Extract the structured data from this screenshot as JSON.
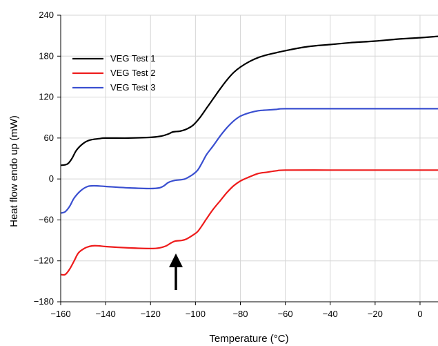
{
  "chart_data": {
    "type": "line",
    "xlabel": "Temperature (°C)",
    "ylabel": "Heat flow endo up (mW)",
    "xlim": [
      -160,
      8
    ],
    "ylim": [
      -180,
      240
    ],
    "xticks": [
      -160,
      -140,
      -120,
      -100,
      -80,
      -60,
      -40,
      -20,
      0
    ],
    "yticks": [
      -180,
      -120,
      -60,
      0,
      60,
      120,
      180,
      240
    ],
    "xtick_labels": [
      "−160",
      "−140",
      "−120",
      "−100",
      "−80",
      "−60",
      "−40",
      "−20",
      "0"
    ],
    "ytick_labels": [
      "−180",
      "−120",
      "−60",
      "0",
      "60",
      "120",
      "180",
      "240"
    ],
    "grid": true,
    "legend_position": "top-left",
    "annotation": "upward arrow at about −107 °C",
    "series": [
      {
        "name": "VEG Test 1",
        "color": "#000000",
        "points": [
          [
            -160,
            20
          ],
          [
            -157,
            22
          ],
          [
            -155,
            30
          ],
          [
            -153,
            42
          ],
          [
            -150,
            52
          ],
          [
            -147,
            57
          ],
          [
            -143,
            59
          ],
          [
            -140,
            60
          ],
          [
            -130,
            60
          ],
          [
            -120,
            61
          ],
          [
            -115,
            63
          ],
          [
            -112,
            66
          ],
          [
            -110,
            69
          ],
          [
            -107,
            70
          ],
          [
            -104,
            73
          ],
          [
            -101,
            79
          ],
          [
            -98,
            90
          ],
          [
            -95,
            104
          ],
          [
            -92,
            118
          ],
          [
            -89,
            132
          ],
          [
            -86,
            145
          ],
          [
            -83,
            156
          ],
          [
            -80,
            164
          ],
          [
            -76,
            172
          ],
          [
            -72,
            178
          ],
          [
            -68,
            182
          ],
          [
            -64,
            185
          ],
          [
            -60,
            188
          ],
          [
            -50,
            194
          ],
          [
            -40,
            197
          ],
          [
            -30,
            200
          ],
          [
            -20,
            202
          ],
          [
            -10,
            205
          ],
          [
            0,
            207
          ],
          [
            8,
            209
          ]
        ]
      },
      {
        "name": "VEG Test 2",
        "color": "#ee1c1c",
        "points": [
          [
            -160,
            -140
          ],
          [
            -158,
            -140
          ],
          [
            -156,
            -132
          ],
          [
            -154,
            -120
          ],
          [
            -152,
            -108
          ],
          [
            -149,
            -101
          ],
          [
            -146,
            -98
          ],
          [
            -143,
            -98
          ],
          [
            -140,
            -99
          ],
          [
            -130,
            -101
          ],
          [
            -120,
            -102
          ],
          [
            -116,
            -101
          ],
          [
            -113,
            -98
          ],
          [
            -111,
            -94
          ],
          [
            -109,
            -91
          ],
          [
            -106,
            -90
          ],
          [
            -104,
            -88
          ],
          [
            -101,
            -82
          ],
          [
            -99,
            -77
          ],
          [
            -97,
            -68
          ],
          [
            -95,
            -58
          ],
          [
            -92,
            -44
          ],
          [
            -89,
            -32
          ],
          [
            -86,
            -20
          ],
          [
            -83,
            -10
          ],
          [
            -80,
            -3
          ],
          [
            -76,
            3
          ],
          [
            -72,
            8
          ],
          [
            -68,
            10
          ],
          [
            -64,
            12
          ],
          [
            -60,
            13
          ],
          [
            -40,
            13
          ],
          [
            -20,
            13
          ],
          [
            0,
            13
          ],
          [
            8,
            13
          ]
        ]
      },
      {
        "name": "VEG Test 3",
        "color": "#3a4fd0",
        "points": [
          [
            -160,
            -50
          ],
          [
            -158,
            -48
          ],
          [
            -156,
            -40
          ],
          [
            -154,
            -28
          ],
          [
            -151,
            -17
          ],
          [
            -148,
            -11
          ],
          [
            -145,
            -10
          ],
          [
            -140,
            -11
          ],
          [
            -130,
            -13
          ],
          [
            -120,
            -14
          ],
          [
            -116,
            -13
          ],
          [
            -114,
            -10
          ],
          [
            -112,
            -5
          ],
          [
            -109,
            -2
          ],
          [
            -106,
            -1
          ],
          [
            -104,
            1
          ],
          [
            -101,
            7
          ],
          [
            -99,
            13
          ],
          [
            -97,
            24
          ],
          [
            -95,
            36
          ],
          [
            -92,
            49
          ],
          [
            -89,
            63
          ],
          [
            -86,
            75
          ],
          [
            -83,
            85
          ],
          [
            -80,
            92
          ],
          [
            -76,
            97
          ],
          [
            -72,
            100
          ],
          [
            -68,
            101
          ],
          [
            -64,
            102
          ],
          [
            -60,
            103
          ],
          [
            -40,
            103
          ],
          [
            -20,
            103
          ],
          [
            0,
            103
          ],
          [
            8,
            103
          ]
        ]
      }
    ]
  }
}
